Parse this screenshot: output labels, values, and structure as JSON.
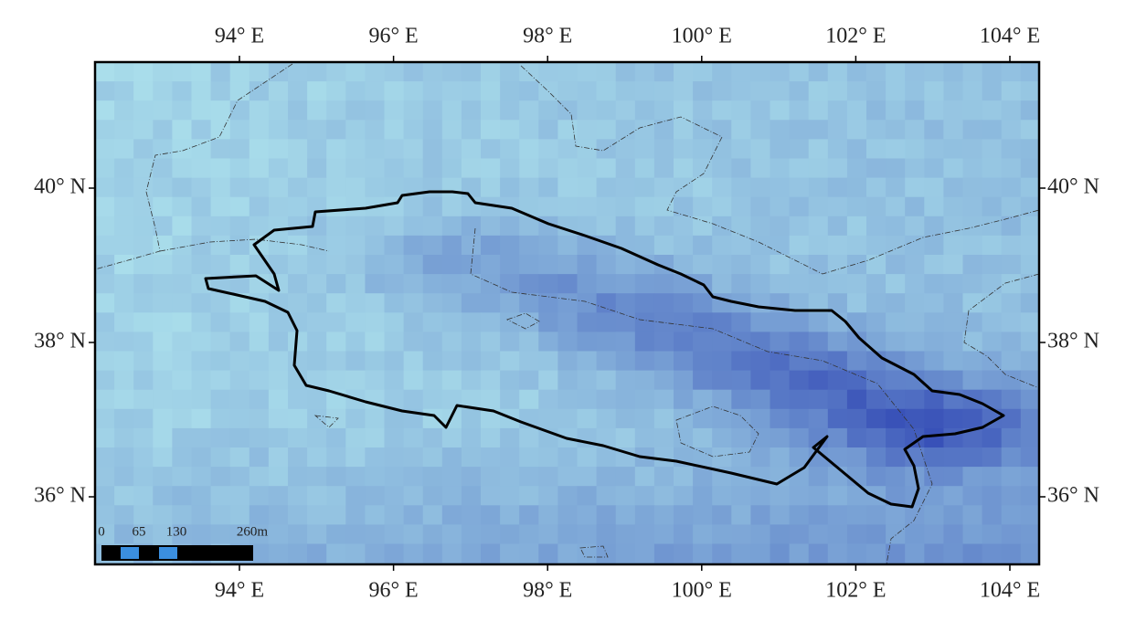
{
  "map": {
    "longitude_labels": [
      "94° E",
      "96° E",
      "98° E",
      "100° E",
      "102° E",
      "104° E"
    ],
    "latitude_labels": [
      "40° N",
      "38° N",
      "36° N"
    ],
    "scale_bar": {
      "labels": [
        "0",
        "65",
        "130",
        "260m"
      ]
    }
  }
}
